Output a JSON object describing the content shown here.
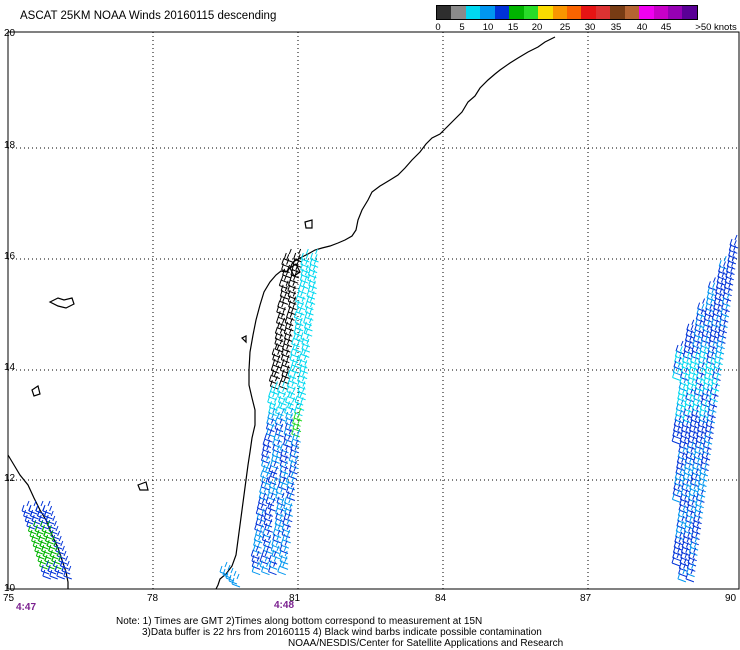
{
  "title": "ASCAT 25KM NOAA Winds 20160115 descending",
  "legend": {
    "colors": [
      "#2e2e2e",
      "#8a8a8a",
      "#00d8f0",
      "#0096f0",
      "#0032d8",
      "#00b400",
      "#28dc28",
      "#fadc00",
      "#fa9600",
      "#fa6400",
      "#e61414",
      "#dc3232",
      "#783c14",
      "#b46432",
      "#f000f0",
      "#c800c8",
      "#9600b4",
      "#5a0096"
    ],
    "labels": [
      "0",
      "5",
      "10",
      "15",
      "20",
      "25",
      "30",
      "35",
      "40",
      "45",
      ">50 knots"
    ]
  },
  "axes": {
    "x_ticks": [
      "75",
      "78",
      "81",
      "84",
      "87",
      "90"
    ],
    "y_ticks": [
      "10",
      "12",
      "14",
      "16",
      "18",
      "20"
    ]
  },
  "times": [
    "4:47",
    "4:48"
  ],
  "notes": {
    "line1": "Note: 1) Times are GMT 2)Times along bottom correspond to measurement at 15N",
    "line2": "3)Data buffer is 22 hrs from 20160115 4) Black wind barbs indicate possible contamination",
    "line3": "NOAA/NESDIS/Center for Satellite Applications and Research"
  }
}
